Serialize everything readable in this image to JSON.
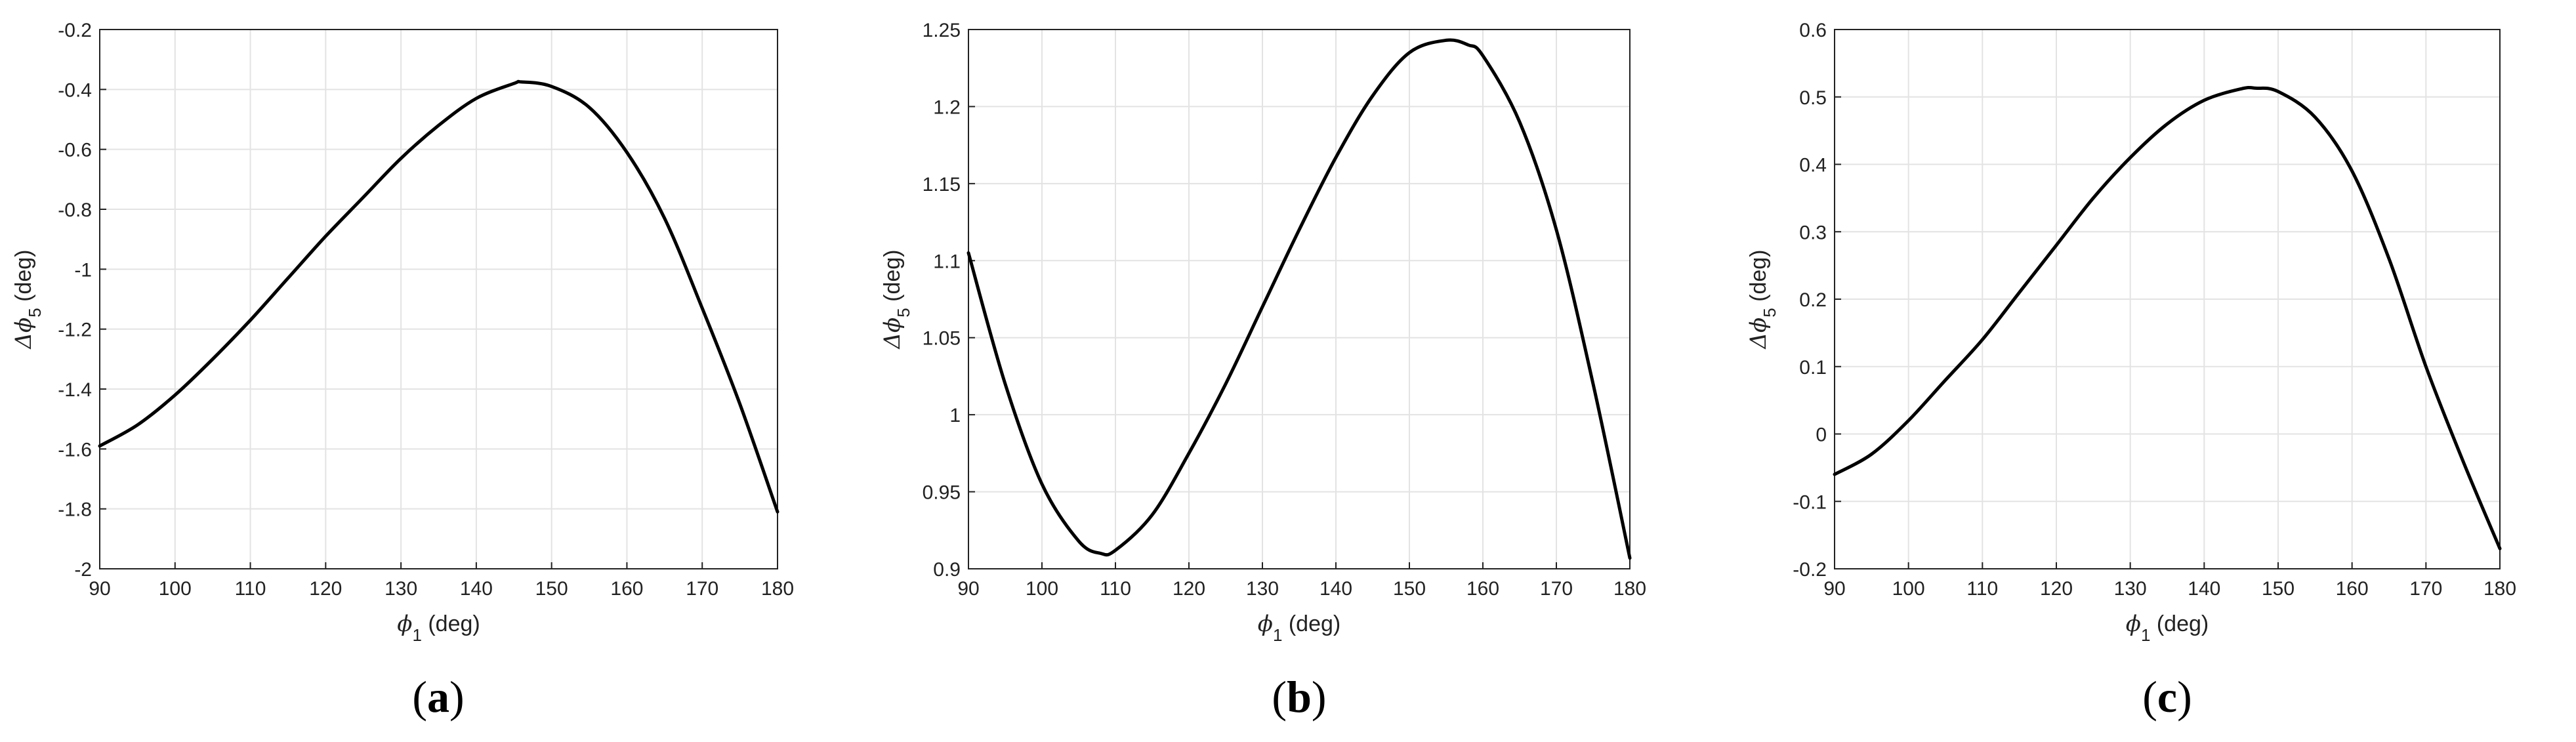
{
  "chart_data": [
    {
      "type": "line",
      "panel_label": "a",
      "xlabel": {
        "symbol": "ϕ",
        "sub": "1",
        "unit": " (deg)"
      },
      "ylabel": {
        "symbol": "Δϕ",
        "sub": "5",
        "unit": " (deg)"
      },
      "xlim": [
        90,
        180
      ],
      "ylim": [
        -2,
        -0.2
      ],
      "xticks": [
        90,
        100,
        110,
        120,
        130,
        140,
        150,
        160,
        170,
        180
      ],
      "xtick_labels": [
        "90",
        "100",
        "110",
        "120",
        "130",
        "140",
        "150",
        "160",
        "170",
        "180"
      ],
      "yticks": [
        -2,
        -1.8,
        -1.6,
        -1.4,
        -1.2,
        -1,
        -0.8,
        -0.6,
        -0.4,
        -0.2
      ],
      "ytick_labels": [
        "-2",
        "-1.8",
        "-1.6",
        "-1.4",
        "-1.2",
        "-1",
        "-0.8",
        "-0.6",
        "-0.4",
        "-0.2"
      ],
      "grid": true,
      "series": [
        {
          "x": [
            90,
            95,
            100,
            105,
            110,
            115,
            120,
            125,
            130,
            135,
            140,
            145,
            146,
            150,
            155,
            160,
            165,
            170,
            175,
            180
          ],
          "y": [
            -1.59,
            -1.52,
            -1.42,
            -1.3,
            -1.17,
            -1.03,
            -0.89,
            -0.76,
            -0.63,
            -0.52,
            -0.43,
            -0.38,
            -0.375,
            -0.39,
            -0.46,
            -0.61,
            -0.83,
            -1.13,
            -1.45,
            -1.81
          ]
        }
      ]
    },
    {
      "type": "line",
      "panel_label": "b",
      "xlabel": {
        "symbol": "ϕ",
        "sub": "1",
        "unit": " (deg)"
      },
      "ylabel": {
        "symbol": "Δϕ",
        "sub": "5",
        "unit": " (deg)"
      },
      "xlim": [
        90,
        180
      ],
      "ylim": [
        0.9,
        1.25
      ],
      "xticks": [
        90,
        100,
        110,
        120,
        130,
        140,
        150,
        160,
        170,
        180
      ],
      "xtick_labels": [
        "90",
        "100",
        "110",
        "120",
        "130",
        "140",
        "150",
        "160",
        "170",
        "180"
      ],
      "yticks": [
        0.9,
        0.95,
        1,
        1.05,
        1.1,
        1.15,
        1.2,
        1.25
      ],
      "ytick_labels": [
        "0.9",
        "0.95",
        "1",
        "1.05",
        "1.1",
        "1.15",
        "1.2",
        "1.25"
      ],
      "grid": true,
      "series": [
        {
          "x": [
            90,
            95,
            100,
            105,
            108,
            110,
            115,
            120,
            125,
            130,
            135,
            140,
            145,
            150,
            155,
            158,
            160,
            165,
            170,
            175,
            180
          ],
          "y": [
            1.105,
            1.02,
            0.955,
            0.918,
            0.91,
            0.912,
            0.935,
            0.975,
            1.02,
            1.07,
            1.12,
            1.167,
            1.207,
            1.235,
            1.243,
            1.24,
            1.233,
            1.19,
            1.12,
            1.02,
            0.907
          ]
        }
      ]
    },
    {
      "type": "line",
      "panel_label": "c",
      "xlabel": {
        "symbol": "ϕ",
        "sub": "1",
        "unit": " (deg)"
      },
      "ylabel": {
        "symbol": "Δϕ",
        "sub": "5",
        "unit": " (deg)"
      },
      "xlim": [
        90,
        180
      ],
      "ylim": [
        -0.2,
        0.6
      ],
      "xticks": [
        90,
        100,
        110,
        120,
        130,
        140,
        150,
        160,
        170,
        180
      ],
      "xtick_labels": [
        "90",
        "100",
        "110",
        "120",
        "130",
        "140",
        "150",
        "160",
        "170",
        "180"
      ],
      "yticks": [
        -0.2,
        -0.1,
        0,
        0.1,
        0.2,
        0.3,
        0.4,
        0.5,
        0.6
      ],
      "ytick_labels": [
        "-0.2",
        "-0.1",
        "0",
        "0.1",
        "0.2",
        "0.3",
        "0.4",
        "0.5",
        "0.6"
      ],
      "grid": true,
      "series": [
        {
          "x": [
            90,
            95,
            100,
            105,
            110,
            115,
            120,
            125,
            130,
            135,
            140,
            145,
            147,
            150,
            155,
            160,
            165,
            170,
            175,
            180
          ],
          "y": [
            -0.06,
            -0.03,
            0.02,
            0.08,
            0.14,
            0.21,
            0.28,
            0.35,
            0.41,
            0.46,
            0.495,
            0.512,
            0.513,
            0.508,
            0.47,
            0.39,
            0.26,
            0.1,
            -0.04,
            -0.17
          ]
        }
      ]
    }
  ]
}
